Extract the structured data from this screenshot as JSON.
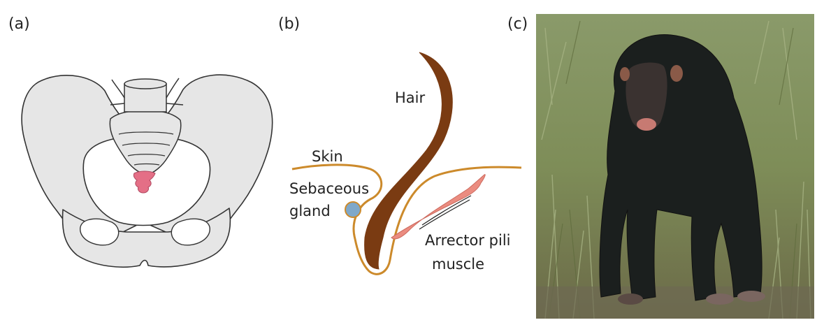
{
  "panels": [
    {
      "label": "(a)"
    },
    {
      "label": "(b)"
    },
    {
      "label": "(c)"
    }
  ],
  "diagram_b": {
    "hair": "Hair",
    "skin": "Skin",
    "sebaceous_line1": "Sebaceous",
    "sebaceous_line2": "gland",
    "arrector_line1": "Arrector pili",
    "arrector_line2": "muscle"
  },
  "colors": {
    "bone_fill": "#e6e6e6",
    "outline": "#333333",
    "coccyx": "#e46f86",
    "hair_shaft": "#7a3b12",
    "skin_line": "#cc8a2b",
    "gland": "#7fa8c9",
    "muscle": "#eb8c80"
  }
}
